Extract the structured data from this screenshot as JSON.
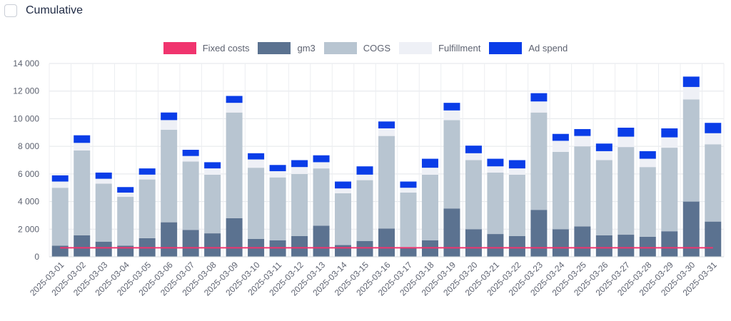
{
  "toggle": {
    "label": "Cumulative",
    "checked": false
  },
  "chart_data": {
    "type": "bar",
    "stacked": true,
    "categories": [
      "2025-03-01",
      "2025-03-02",
      "2025-03-03",
      "2025-03-04",
      "2025-03-05",
      "2025-03-06",
      "2025-03-07",
      "2025-03-08",
      "2025-03-09",
      "2025-03-10",
      "2025-03-11",
      "2025-03-12",
      "2025-03-13",
      "2025-03-14",
      "2025-03-15",
      "2025-03-16",
      "2025-03-17",
      "2025-03-18",
      "2025-03-19",
      "2025-03-20",
      "2025-03-21",
      "2025-03-22",
      "2025-03-23",
      "2025-03-24",
      "2025-03-25",
      "2025-03-26",
      "2025-03-27",
      "2025-03-28",
      "2025-03-29",
      "2025-03-30",
      "2025-03-31"
    ],
    "ylim": [
      0,
      14000
    ],
    "yticks": [
      0,
      2000,
      4000,
      6000,
      8000,
      10000,
      12000,
      14000
    ],
    "ytick_labels": [
      "0",
      "2 000",
      "4 000",
      "6 000",
      "8 000",
      "10 000",
      "12 000",
      "14 000"
    ],
    "grid": true,
    "legend_position": "top",
    "series": [
      {
        "name": "Fixed costs",
        "type": "line",
        "color": "#f0346e",
        "values": [
          650,
          650,
          650,
          650,
          650,
          650,
          650,
          650,
          650,
          650,
          650,
          650,
          650,
          650,
          650,
          650,
          650,
          650,
          650,
          650,
          650,
          650,
          650,
          650,
          650,
          650,
          650,
          650,
          650,
          650,
          650
        ]
      },
      {
        "name": "gm3",
        "color": "#5b7290",
        "values": [
          800,
          1550,
          1100,
          800,
          1350,
          2500,
          1950,
          1700,
          2800,
          1300,
          1200,
          1500,
          2250,
          850,
          1150,
          2050,
          700,
          1200,
          3500,
          2000,
          1650,
          1500,
          3400,
          2000,
          2200,
          1550,
          1600,
          1450,
          1850,
          4000,
          2550
        ]
      },
      {
        "name": "COGS",
        "color": "#b8c5d1",
        "values": [
          4200,
          6150,
          4200,
          3550,
          4250,
          6700,
          4950,
          4250,
          7650,
          5150,
          4550,
          4500,
          4150,
          3750,
          4400,
          6700,
          3950,
          4750,
          6400,
          5000,
          4450,
          4450,
          7050,
          5600,
          5800,
          5450,
          6350,
          5050,
          6050,
          7400,
          5600
        ]
      },
      {
        "name": "Fulfillment",
        "color": "#eef0f6",
        "values": [
          450,
          550,
          350,
          300,
          350,
          700,
          400,
          450,
          700,
          600,
          450,
          500,
          450,
          350,
          400,
          550,
          350,
          500,
          700,
          500,
          450,
          450,
          800,
          800,
          750,
          650,
          750,
          600,
          750,
          900,
          800
        ]
      },
      {
        "name": "Ad spend",
        "color": "#0a3de8",
        "values": [
          450,
          550,
          450,
          400,
          450,
          550,
          450,
          450,
          500,
          450,
          450,
          500,
          500,
          500,
          600,
          500,
          450,
          650,
          550,
          550,
          550,
          600,
          600,
          500,
          500,
          550,
          650,
          550,
          650,
          750,
          750
        ]
      }
    ]
  }
}
